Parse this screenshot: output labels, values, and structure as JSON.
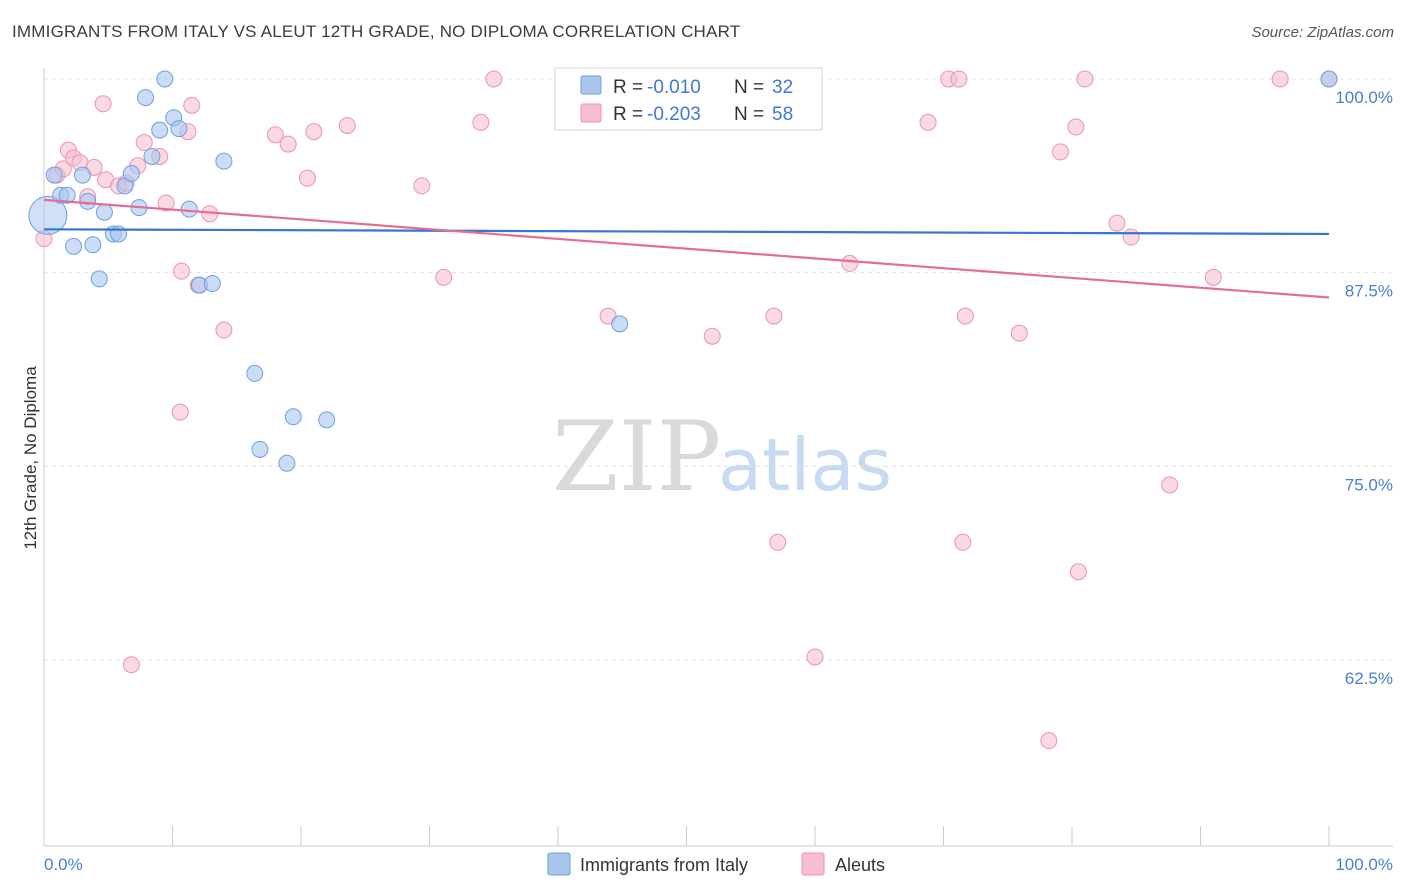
{
  "title": "IMMIGRANTS FROM ITALY VS ALEUT 12TH GRADE, NO DIPLOMA CORRELATION CHART",
  "source": "Source: ZipAtlas.com",
  "watermark": {
    "zip": "ZIP",
    "atlas": "atlas"
  },
  "colors": {
    "italy_fill": "#a9c6ef",
    "italy_stroke": "#6f9fe0",
    "italy_line": "#3575d3",
    "aleut_fill": "#f5bfd0",
    "aleut_stroke": "#ec93b1",
    "aleut_line": "#e46d96",
    "grid": "#e3e3e3",
    "axis": "#cccccc"
  },
  "legend_top": {
    "rows": [
      {
        "r_label": "R =",
        "r_value": "-0.010",
        "n_label": "N =",
        "n_value": "32"
      },
      {
        "r_label": "R =",
        "r_value": "-0.203",
        "n_label": "N =",
        "n_value": "58"
      }
    ]
  },
  "legend_bottom": {
    "series1": "Immigrants from Italy",
    "series2": "Aleuts"
  },
  "chart_data": {
    "type": "scatter",
    "title": "IMMIGRANTS FROM ITALY VS ALEUT 12TH GRADE, NO DIPLOMA CORRELATION CHART",
    "xlabel": "",
    "ylabel": "12th Grade, No Diploma",
    "xlim": [
      0,
      100
    ],
    "ylim": [
      50,
      100
    ],
    "x_tick_labels": [
      "0.0%",
      "100.0%"
    ],
    "y_ticks": [
      100,
      87.5,
      75,
      62.5
    ],
    "y_tick_labels": [
      "100.0%",
      "87.5%",
      "75.0%",
      "62.5%"
    ],
    "grid": true,
    "legend_position": "top-center",
    "series": [
      {
        "name": "Immigrants from Italy",
        "r": -0.01,
        "n": 32,
        "trend": [
          [
            0,
            90.3
          ],
          [
            100,
            90.0
          ]
        ],
        "points": [
          [
            0.3,
            91.2
          ],
          [
            0.8,
            93.8
          ],
          [
            1.3,
            92.5
          ],
          [
            1.8,
            92.5
          ],
          [
            2.3,
            89.2
          ],
          [
            3.0,
            93.8
          ],
          [
            3.4,
            92.1
          ],
          [
            3.8,
            89.3
          ],
          [
            4.3,
            87.1
          ],
          [
            4.7,
            91.4
          ],
          [
            5.4,
            90.0
          ],
          [
            5.8,
            90.0
          ],
          [
            6.3,
            93.1
          ],
          [
            6.8,
            93.9
          ],
          [
            7.4,
            91.7
          ],
          [
            7.9,
            98.8
          ],
          [
            8.4,
            95.0
          ],
          [
            9.0,
            96.7
          ],
          [
            9.4,
            100.0
          ],
          [
            10.1,
            97.5
          ],
          [
            10.5,
            96.8
          ],
          [
            11.3,
            91.6
          ],
          [
            12.1,
            86.7
          ],
          [
            13.1,
            86.8
          ],
          [
            14.0,
            94.7
          ],
          [
            16.4,
            81.0
          ],
          [
            16.8,
            76.1
          ],
          [
            18.9,
            75.2
          ],
          [
            19.4,
            78.2
          ],
          [
            22.0,
            78.0
          ],
          [
            44.8,
            84.2
          ],
          [
            100.0,
            100.0
          ]
        ]
      },
      {
        "name": "Aleuts",
        "r": -0.203,
        "n": 58,
        "trend": [
          [
            0,
            92.2
          ],
          [
            100,
            85.9
          ]
        ],
        "points": [
          [
            0.0,
            89.7
          ],
          [
            1.0,
            93.8
          ],
          [
            1.5,
            94.2
          ],
          [
            1.9,
            95.4
          ],
          [
            2.3,
            94.9
          ],
          [
            2.8,
            94.6
          ],
          [
            3.4,
            92.4
          ],
          [
            3.9,
            94.3
          ],
          [
            4.6,
            98.4
          ],
          [
            4.8,
            93.5
          ],
          [
            5.8,
            93.1
          ],
          [
            6.4,
            93.3
          ],
          [
            6.8,
            62.2
          ],
          [
            7.3,
            94.4
          ],
          [
            7.8,
            95.9
          ],
          [
            9.0,
            95.0
          ],
          [
            9.5,
            92.0
          ],
          [
            10.6,
            78.5
          ],
          [
            10.7,
            87.6
          ],
          [
            11.2,
            96.6
          ],
          [
            11.5,
            98.3
          ],
          [
            12.0,
            86.7
          ],
          [
            12.9,
            91.3
          ],
          [
            14.0,
            83.8
          ],
          [
            18.0,
            96.4
          ],
          [
            19.0,
            95.8
          ],
          [
            20.5,
            93.6
          ],
          [
            21.0,
            96.6
          ],
          [
            23.6,
            97.0
          ],
          [
            29.4,
            93.1
          ],
          [
            31.1,
            87.2
          ],
          [
            34.0,
            97.2
          ],
          [
            35.0,
            100.0
          ],
          [
            43.9,
            84.7
          ],
          [
            47.4,
            100.0
          ],
          [
            52.0,
            83.4
          ],
          [
            55.9,
            100.0
          ],
          [
            56.8,
            84.7
          ],
          [
            57.1,
            70.1
          ],
          [
            60.0,
            62.7
          ],
          [
            62.7,
            88.1
          ],
          [
            68.8,
            97.2
          ],
          [
            70.4,
            100.0
          ],
          [
            71.2,
            100.0
          ],
          [
            71.5,
            70.1
          ],
          [
            71.7,
            84.7
          ],
          [
            75.9,
            83.6
          ],
          [
            78.2,
            57.3
          ],
          [
            79.1,
            95.3
          ],
          [
            80.3,
            96.9
          ],
          [
            80.5,
            68.2
          ],
          [
            81.0,
            100.0
          ],
          [
            83.5,
            90.7
          ],
          [
            84.6,
            89.8
          ],
          [
            87.6,
            73.8
          ],
          [
            91.0,
            87.2
          ],
          [
            96.2,
            100.0
          ],
          [
            100.0,
            100.0
          ]
        ]
      }
    ]
  }
}
